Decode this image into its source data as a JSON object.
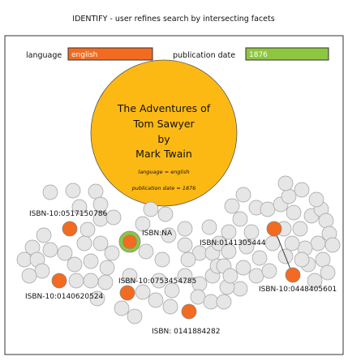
{
  "header": {
    "title": "IDENTIFY - user refines search by intersecting facets"
  },
  "facets": {
    "language": {
      "label": "language",
      "value": "english",
      "color": "#f26b21"
    },
    "publication_date": {
      "label": "publication date",
      "value": "1876",
      "color": "#8dc63f"
    }
  },
  "book": {
    "title_lines": [
      "The Adventures of",
      "Tom Sawyer",
      "by",
      "Mark Twain"
    ],
    "facet_lines": [
      "language = english",
      "publication date = 1876"
    ],
    "fill": "#fdb913"
  },
  "colors": {
    "bubble": "#e6e6e6",
    "bubble_stroke": "#a0a0a0",
    "result": "#f26b21",
    "match_ring": "#8dc63f"
  },
  "results": [
    {
      "label": "ISBN-10:0517150786"
    },
    {
      "label": "ISBN:NA"
    },
    {
      "label": "ISBN:0141305444"
    },
    {
      "label": "ISBN-10:0140620524"
    },
    {
      "label": "ISBN-10:0753454785"
    },
    {
      "label": "ISBN-10:0448405601"
    },
    {
      "label": "ISBN: 0141884282"
    }
  ]
}
